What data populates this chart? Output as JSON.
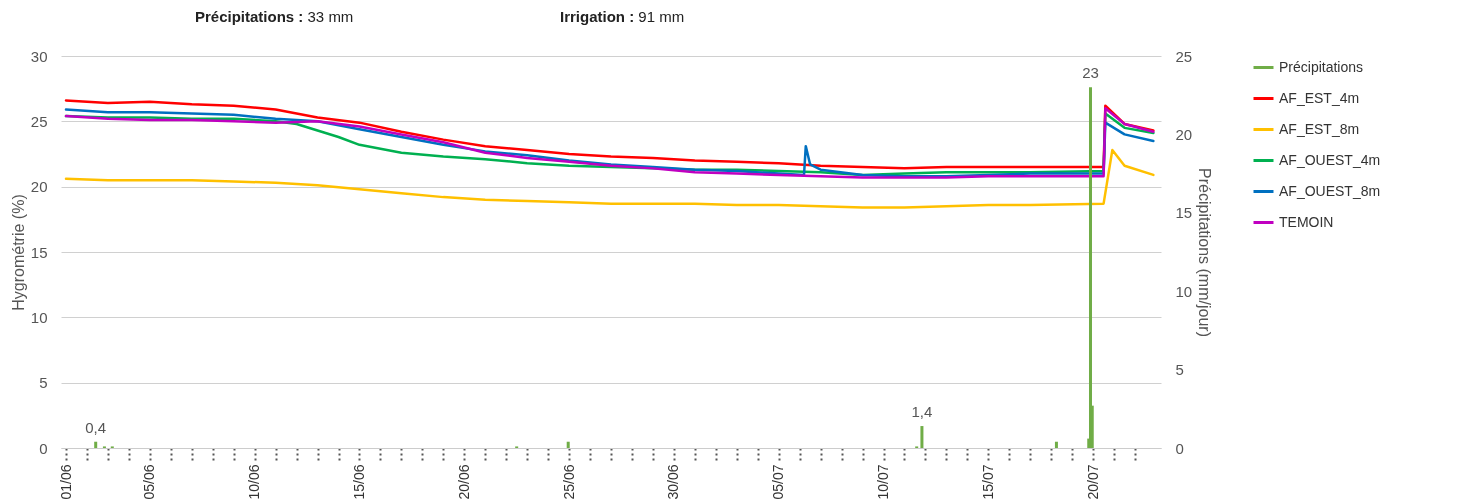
{
  "chart_data": {
    "type": "line",
    "ylabel": "Hygrométrie (%)",
    "y2label": "Précipitations (mm/jour)",
    "annotations": [
      "Précipitations : 33 mm",
      "Irrigation : 91 mm"
    ],
    "xlim": [
      "--06-01",
      "--07-23"
    ],
    "xticks": [
      {
        "value": "--06-01",
        "label": "01/06"
      },
      {
        "value": "--06-02",
        "label": null
      },
      {
        "value": "--06-03",
        "label": null
      },
      {
        "value": "--06-04",
        "label": null
      },
      {
        "value": "--06-05",
        "label": "05/06"
      },
      {
        "value": "--06-06",
        "label": null
      },
      {
        "value": "--06-07",
        "label": null
      },
      {
        "value": "--06-08",
        "label": null
      },
      {
        "value": "--06-09",
        "label": null
      },
      {
        "value": "--06-10",
        "label": "10/06"
      },
      {
        "value": "--06-11",
        "label": null
      },
      {
        "value": "--06-12",
        "label": null
      },
      {
        "value": "--06-13",
        "label": null
      },
      {
        "value": "--06-14",
        "label": null
      },
      {
        "value": "--06-15",
        "label": "15/06"
      },
      {
        "value": "--06-16",
        "label": null
      },
      {
        "value": "--06-17",
        "label": null
      },
      {
        "value": "--06-18",
        "label": null
      },
      {
        "value": "--06-19",
        "label": null
      },
      {
        "value": "--06-20",
        "label": "20/06"
      },
      {
        "value": "--06-21",
        "label": null
      },
      {
        "value": "--06-22",
        "label": null
      },
      {
        "value": "--06-23",
        "label": null
      },
      {
        "value": "--06-24",
        "label": null
      },
      {
        "value": "--06-25",
        "label": "25/06"
      },
      {
        "value": "--06-26",
        "label": null
      },
      {
        "value": "--06-27",
        "label": null
      },
      {
        "value": "--06-28",
        "label": null
      },
      {
        "value": "--06-29",
        "label": null
      },
      {
        "value": "--06-30",
        "label": "30/06"
      },
      {
        "value": "--07-01",
        "label": null
      },
      {
        "value": "--07-02",
        "label": null
      },
      {
        "value": "--07-03",
        "label": null
      },
      {
        "value": "--07-04",
        "label": null
      },
      {
        "value": "--07-05",
        "label": "05/07"
      },
      {
        "value": "--07-06",
        "label": null
      },
      {
        "value": "--07-07",
        "label": null
      },
      {
        "value": "--07-08",
        "label": null
      },
      {
        "value": "--07-09",
        "label": null
      },
      {
        "value": "--07-10",
        "label": "10/07"
      },
      {
        "value": "--07-11",
        "label": null
      },
      {
        "value": "--07-12",
        "label": null
      },
      {
        "value": "--07-13",
        "label": null
      },
      {
        "value": "--07-14",
        "label": null
      },
      {
        "value": "--07-15",
        "label": "15/07"
      },
      {
        "value": "--07-16",
        "label": null
      },
      {
        "value": "--07-17",
        "label": null
      },
      {
        "value": "--07-18",
        "label": null
      },
      {
        "value": "--07-19",
        "label": null
      },
      {
        "value": "--07-20",
        "label": "20/07"
      },
      {
        "value": "--07-21",
        "label": null
      },
      {
        "value": "--07-22",
        "label": null
      }
    ],
    "ylim": [
      0,
      30
    ],
    "yticks": [
      0,
      5,
      10,
      15,
      20,
      25,
      30
    ],
    "y2lim": [
      0,
      25
    ],
    "y2ticks": [
      0,
      5,
      10,
      15,
      20,
      25
    ],
    "grid": "y",
    "legend": "right",
    "series": [
      {
        "name": "Précipitations",
        "type": "bar",
        "axis": "y2",
        "color": "#70ad47",
        "x": [
          "--06-02T10:00",
          "--06-02T20:00",
          "--06-03T05:00",
          "--06-22T12:00",
          "--06-24T23:00",
          "--07-11T14:00",
          "--07-11T20:00",
          "--07-18T06:00",
          "--07-19T19:00",
          "--07-19T21:00",
          "--07-19T23:00"
        ],
        "values": [
          0.4,
          0.1,
          0.1,
          0.1,
          0.4,
          0.1,
          1.4,
          0.4,
          0.6,
          23,
          2.7
        ],
        "value_labels": [
          "0,4",
          null,
          null,
          null,
          null,
          null,
          "1,4",
          null,
          null,
          "23",
          null
        ]
      },
      {
        "name": "AF_EST_4m",
        "color": "#ff0000",
        "x": [
          "--06-01",
          "--06-03",
          "--06-05",
          "--06-07",
          "--06-09",
          "--06-11",
          "--06-13",
          "--06-15",
          "--06-17",
          "--06-19",
          "--06-21",
          "--06-23",
          "--06-25",
          "--06-27",
          "--06-29",
          "--07-01",
          "--07-03",
          "--07-05",
          "--07-07",
          "--07-09",
          "--07-11",
          "--07-13",
          "--07-15",
          "--07-17",
          "--07-20T12:00",
          "--07-20T14:00",
          "--07-21T12:00",
          "--07-22T21:00"
        ],
        "values": [
          26.6,
          26.4,
          26.5,
          26.3,
          26.2,
          25.9,
          25.3,
          24.9,
          24.2,
          23.6,
          23.1,
          22.8,
          22.5,
          22.3,
          22.2,
          22.0,
          21.9,
          21.8,
          21.6,
          21.5,
          21.4,
          21.5,
          21.5,
          21.5,
          21.5,
          26.2,
          24.8,
          24.3
        ]
      },
      {
        "name": "AF_EST_8m",
        "color": "#ffc000",
        "x": [
          "--06-01",
          "--06-03",
          "--06-05",
          "--06-07",
          "--06-09",
          "--06-11",
          "--06-13",
          "--06-15",
          "--06-17",
          "--06-19",
          "--06-21",
          "--06-23",
          "--06-25",
          "--06-27",
          "--06-29",
          "--07-01",
          "--07-03",
          "--07-05",
          "--07-07",
          "--07-09",
          "--07-11",
          "--07-13",
          "--07-15",
          "--07-17",
          "--07-20T12:00",
          "--07-20T22:00",
          "--07-21T12:00",
          "--07-22T21:00"
        ],
        "values": [
          20.6,
          20.5,
          20.5,
          20.5,
          20.4,
          20.3,
          20.1,
          19.8,
          19.5,
          19.2,
          19.0,
          18.9,
          18.8,
          18.7,
          18.7,
          18.7,
          18.6,
          18.6,
          18.5,
          18.4,
          18.4,
          18.5,
          18.6,
          18.6,
          18.7,
          22.8,
          21.6,
          20.9
        ]
      },
      {
        "name": "AF_OUEST_4m",
        "color": "#00b050",
        "x": [
          "--06-01",
          "--06-03",
          "--06-05",
          "--06-07",
          "--06-09",
          "--06-11",
          "--06-12",
          "--06-13",
          "--06-14",
          "--06-15",
          "--06-17",
          "--06-19",
          "--06-21",
          "--06-23",
          "--06-25",
          "--06-27",
          "--06-29",
          "--07-01",
          "--07-03",
          "--07-05",
          "--07-07",
          "--07-09",
          "--07-11",
          "--07-13",
          "--07-15",
          "--07-17",
          "--07-20T12:00",
          "--07-20T14:00",
          "--07-21T12:00",
          "--07-22T21:00"
        ],
        "values": [
          25.4,
          25.3,
          25.3,
          25.2,
          25.2,
          25.0,
          24.8,
          24.3,
          23.8,
          23.2,
          22.6,
          22.3,
          22.1,
          21.8,
          21.6,
          21.5,
          21.4,
          21.3,
          21.3,
          21.2,
          21.1,
          20.9,
          21.0,
          21.1,
          21.1,
          21.1,
          21.2,
          25.6,
          24.5,
          24.1
        ]
      },
      {
        "name": "AF_OUEST_8m",
        "color": "#0070c0",
        "x": [
          "--06-01",
          "--06-03",
          "--06-05",
          "--06-07",
          "--06-09",
          "--06-11",
          "--06-13",
          "--06-15",
          "--06-17",
          "--06-19",
          "--06-21",
          "--06-23",
          "--06-25",
          "--06-27",
          "--06-29",
          "--07-01",
          "--07-03",
          "--07-05",
          "--07-06T05:00",
          "--07-06T07:00",
          "--07-06T12:00",
          "--07-07",
          "--07-09",
          "--07-11",
          "--07-13",
          "--07-15",
          "--07-17",
          "--07-20T12:00",
          "--07-20T14:00",
          "--07-21T12:00",
          "--07-22T21:00"
        ],
        "values": [
          25.9,
          25.7,
          25.7,
          25.6,
          25.5,
          25.2,
          25.0,
          24.4,
          23.8,
          23.2,
          22.7,
          22.4,
          22.0,
          21.7,
          21.5,
          21.3,
          21.2,
          21.0,
          20.9,
          23.1,
          21.7,
          21.3,
          20.9,
          20.8,
          20.8,
          20.9,
          21.0,
          21.0,
          24.9,
          24.0,
          23.5
        ]
      },
      {
        "name": "TEMOIN",
        "color": "#c000c0",
        "x": [
          "--06-01",
          "--06-03",
          "--06-05",
          "--06-07",
          "--06-09",
          "--06-11",
          "--06-13",
          "--06-15",
          "--06-17",
          "--06-19",
          "--06-21",
          "--06-23",
          "--06-25",
          "--06-27",
          "--06-29",
          "--07-01",
          "--07-03",
          "--07-05",
          "--07-07",
          "--07-09",
          "--07-11",
          "--07-13",
          "--07-15",
          "--07-17",
          "--07-20T12:00",
          "--07-20T14:00",
          "--07-21T12:00",
          "--07-22T21:00"
        ],
        "values": [
          25.4,
          25.2,
          25.1,
          25.1,
          25.0,
          24.9,
          25.0,
          24.6,
          24.0,
          23.4,
          22.6,
          22.2,
          21.9,
          21.6,
          21.4,
          21.1,
          21.0,
          20.9,
          20.8,
          20.7,
          20.7,
          20.7,
          20.8,
          20.8,
          20.8,
          26.0,
          24.8,
          24.2
        ]
      }
    ]
  }
}
